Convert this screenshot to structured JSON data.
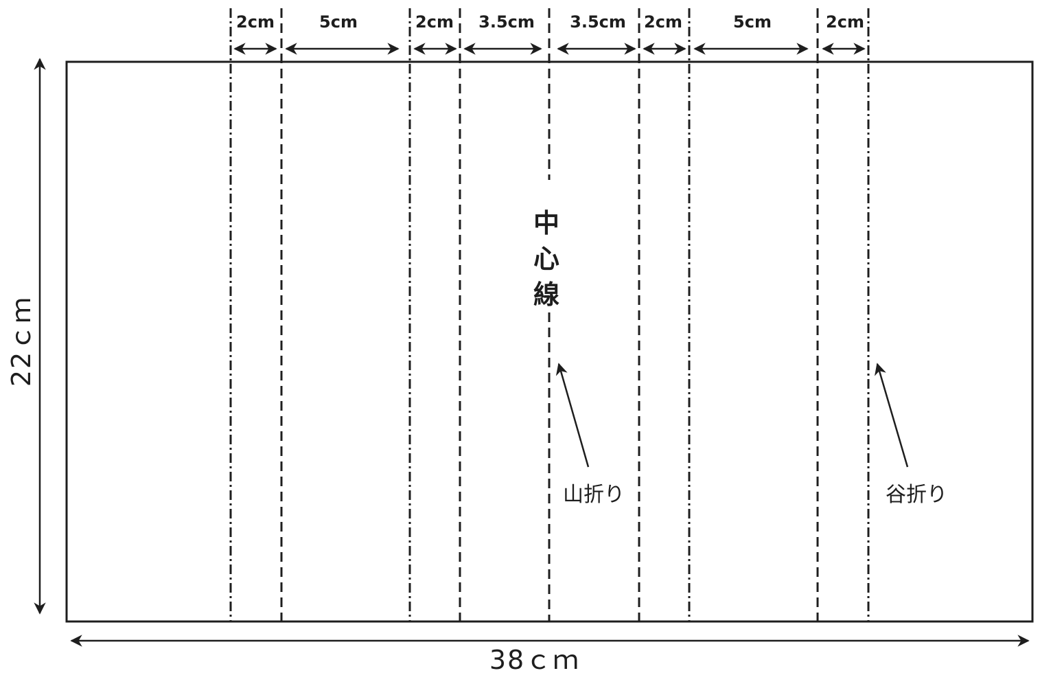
{
  "colors": {
    "ink": "#1e1e1e",
    "paper": "#ffffff"
  },
  "sheet": {
    "width_label": "38ｃｍ",
    "height_label": "22ｃｍ"
  },
  "segments": [
    {
      "label": "2cm"
    },
    {
      "label": "5cm"
    },
    {
      "label": "2cm"
    },
    {
      "label": "3.5cm"
    },
    {
      "label": "3.5cm"
    },
    {
      "label": "2cm"
    },
    {
      "label": "5cm"
    },
    {
      "label": "2cm"
    }
  ],
  "fold_lines": [
    {
      "style": "valley-dash-dot"
    },
    {
      "style": "mountain-dash"
    },
    {
      "style": "valley-dash-dot"
    },
    {
      "style": "mountain-dash"
    },
    {
      "style": "center-dash"
    },
    {
      "style": "mountain-dash"
    },
    {
      "style": "valley-dash-dot"
    },
    {
      "style": "mountain-dash"
    },
    {
      "style": "valley-dash-dot"
    }
  ],
  "center_line": {
    "chars": [
      "中",
      "心",
      "線"
    ]
  },
  "annotations": {
    "mountain_fold": "山折り",
    "valley_fold": "谷折り"
  }
}
